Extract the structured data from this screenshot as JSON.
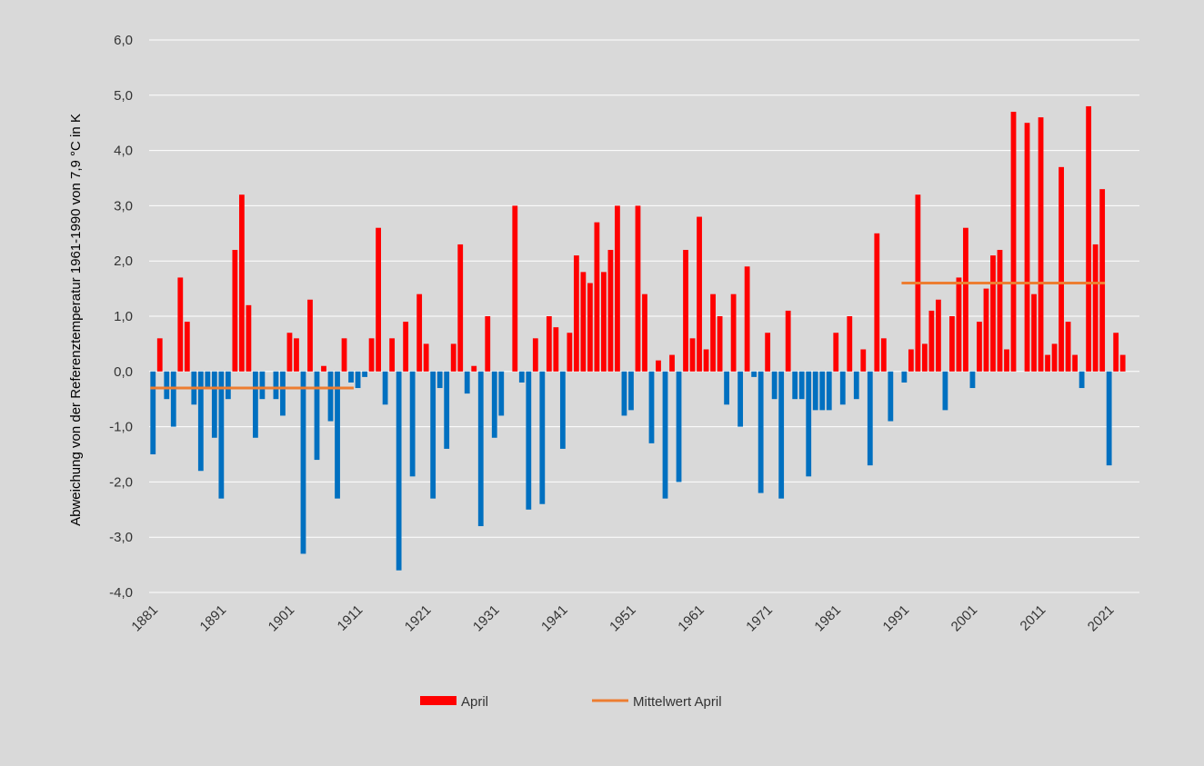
{
  "chart_data": {
    "type": "bar",
    "title": "",
    "xlabel": "",
    "ylabel": "Abweichung von der Referenztemperatur 1961-1990 von 7,9 °C in K",
    "ylim": [
      -4.0,
      6.0
    ],
    "y_ticks": [
      "6,0",
      "5,0",
      "4,0",
      "3,0",
      "2,0",
      "1,0",
      "0,0",
      "-1,0",
      "-2,0",
      "-3,0",
      "-4,0"
    ],
    "y_tick_values": [
      6,
      5,
      4,
      3,
      2,
      1,
      0,
      -1,
      -2,
      -3,
      -4
    ],
    "x_tick_labels": [
      "1881",
      "1891",
      "1901",
      "1911",
      "1921",
      "1931",
      "1941",
      "1951",
      "1961",
      "1971",
      "1981",
      "1991",
      "2001",
      "2011",
      "2021"
    ],
    "grid": "horizontal",
    "legend_position": "bottom",
    "years_first": 1881,
    "colors": {
      "positive": "#ff0000",
      "negative": "#0070c0",
      "mean_line": "#ed7d31",
      "grid": "#ffffff",
      "background": "#d9d9d9"
    },
    "series": [
      {
        "name": "April",
        "values": [
          -1.5,
          0.6,
          -0.5,
          -1.0,
          1.7,
          0.9,
          -0.6,
          -1.8,
          -0.3,
          -1.2,
          -2.3,
          -0.5,
          2.2,
          3.2,
          1.2,
          -1.2,
          -0.5,
          0.0,
          -0.5,
          -0.8,
          0.7,
          0.6,
          -3.3,
          1.3,
          -1.6,
          0.1,
          -0.9,
          -2.3,
          0.6,
          -0.2,
          -0.3,
          -0.1,
          0.6,
          2.6,
          -0.6,
          0.6,
          -3.6,
          0.9,
          -1.9,
          1.4,
          0.5,
          -2.3,
          -0.3,
          -1.4,
          0.5,
          2.3,
          -0.4,
          0.1,
          -2.8,
          1.0,
          -1.2,
          -0.8,
          0.0,
          3.0,
          -0.2,
          -2.5,
          0.6,
          -2.4,
          1.0,
          0.8,
          -1.4,
          0.7,
          2.1,
          1.8,
          1.6,
          2.7,
          1.8,
          2.2,
          3.0,
          -0.8,
          -0.7,
          3.0,
          1.4,
          -1.3,
          0.2,
          -2.3,
          0.3,
          -2.0,
          2.2,
          0.6,
          2.8,
          0.4,
          1.4,
          1.0,
          -0.6,
          1.4,
          -1.0,
          1.9,
          -0.1,
          -2.2,
          0.7,
          -0.5,
          -2.3,
          1.1,
          -0.5,
          -0.5,
          -1.9,
          -0.7,
          -0.7,
          -0.7,
          0.7,
          -0.6,
          1.0,
          -0.5,
          0.4,
          -1.7,
          2.5,
          0.6,
          -0.9,
          0.0,
          -0.2,
          0.4,
          3.2,
          0.5,
          1.1,
          1.3,
          -0.7,
          1.0,
          1.7,
          2.6,
          -0.3,
          0.9,
          1.5,
          2.1,
          2.2,
          0.4,
          4.7,
          0.0,
          4.5,
          1.4,
          4.6,
          0.3,
          0.5,
          3.7,
          0.9,
          0.3,
          -0.3,
          4.8,
          2.3,
          3.3,
          -1.7,
          0.7,
          0.3
        ]
      },
      {
        "name": "Mittelwert April",
        "type": "line",
        "segments": [
          {
            "from": 1881,
            "to": 1910,
            "value": -0.3
          },
          {
            "from": 1991,
            "to": 2020,
            "value": 1.6
          }
        ]
      }
    ]
  }
}
